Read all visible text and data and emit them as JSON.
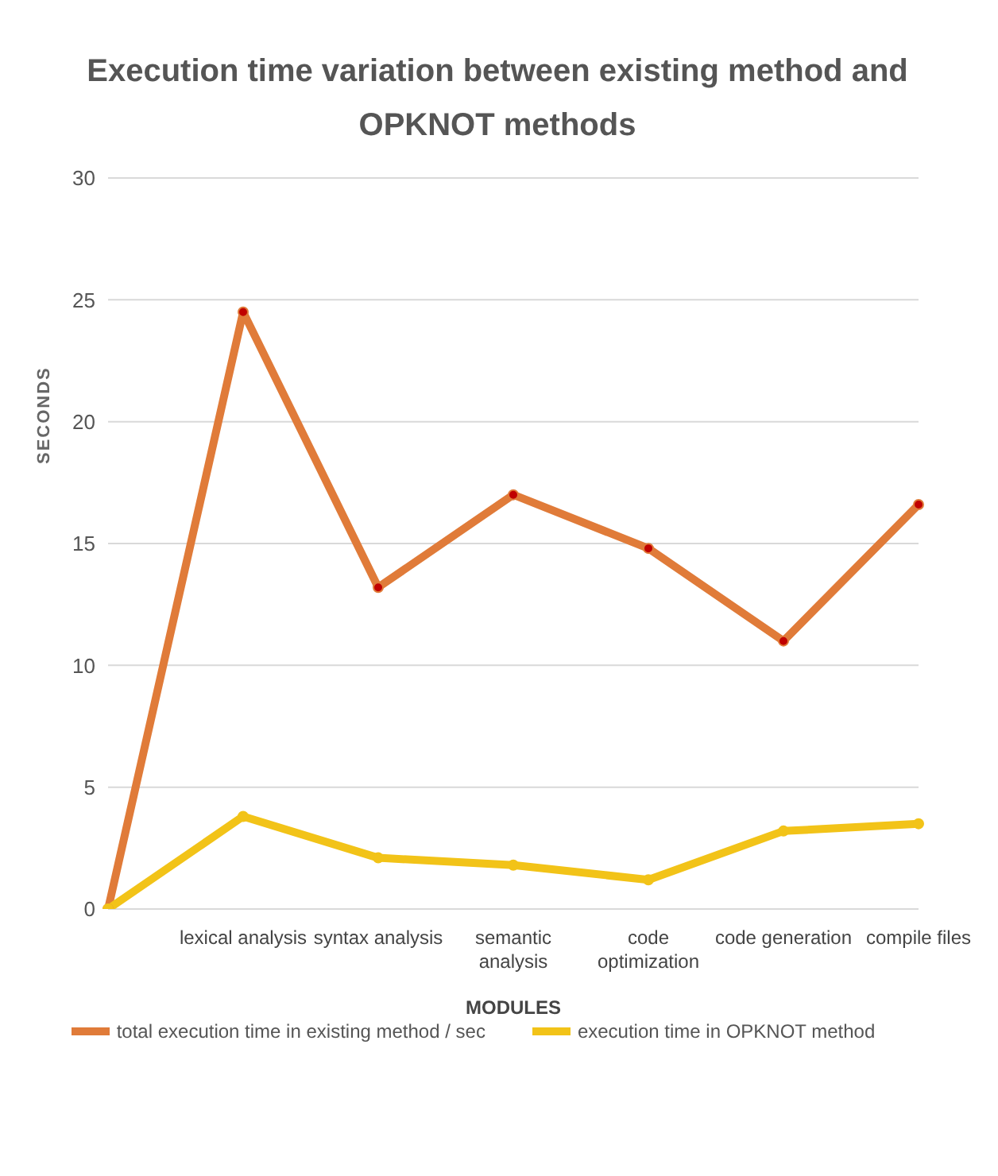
{
  "chart_data": {
    "type": "line",
    "title": "Execution time variation between existing method and OPKNOT methods",
    "xlabel": "MODULES",
    "ylabel": "SECONDS",
    "categories": [
      null,
      "lexical analysis",
      "syntax analysis",
      "semantic analysis",
      "code optimization",
      "code generation",
      "compile files"
    ],
    "series": [
      {
        "name": "total execution time in existing method / sec",
        "color": "#e07b39",
        "values": [
          0,
          24.5,
          13.2,
          17,
          14.8,
          11,
          16.6
        ]
      },
      {
        "name": "execution time in OPKNOT method",
        "color": "#f2c318",
        "values": [
          0,
          3.8,
          2.1,
          1.8,
          1.2,
          3.2,
          3.5
        ]
      }
    ],
    "ylim": [
      0,
      30
    ],
    "yticks": [
      0,
      5,
      10,
      15,
      20,
      25,
      30
    ],
    "grid": "y",
    "legend": "bottom",
    "marker": "circle",
    "line_style": "solid"
  }
}
